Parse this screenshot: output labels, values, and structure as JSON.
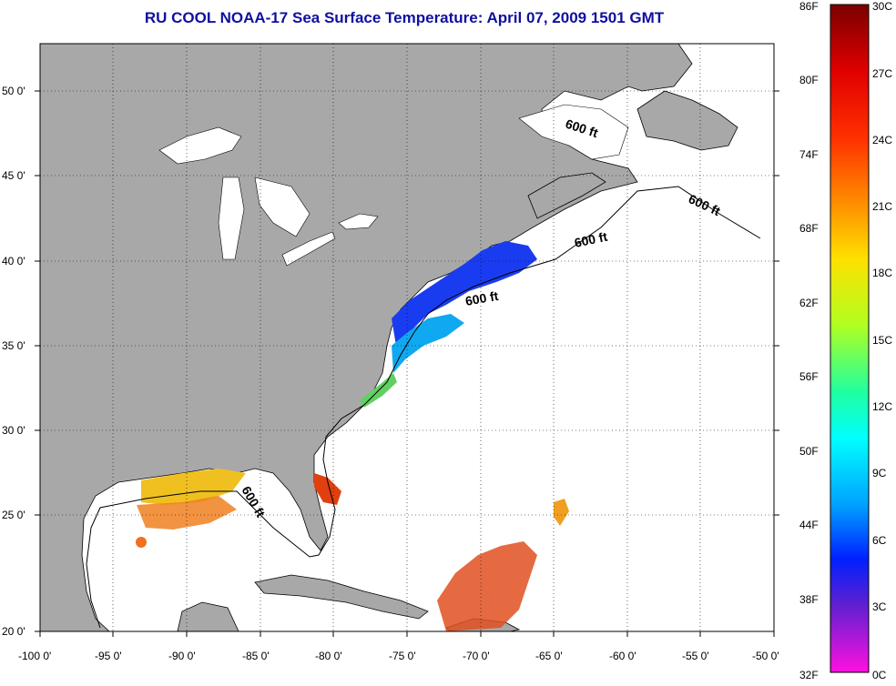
{
  "title": "RU COOL  NOAA-17  Sea Surface Temperature:  April 07, 2009 1501 GMT",
  "x_axis_labels": [
    "-100 0'",
    "-95 0'",
    "-90 0'",
    "-85 0'",
    "-80 0'",
    "-75 0'",
    "-70 0'",
    "-65 0'",
    "-60 0'",
    "-55 0'",
    "-50 0'"
  ],
  "y_axis_labels": [
    "50 0'",
    "45 0'",
    "40 0'",
    "35 0'",
    "30 0'",
    "25 0'",
    "20 0'"
  ],
  "isobath_labels": [
    "600 ft",
    "600 ft",
    "600 ft",
    "600 ft",
    "600 ft"
  ],
  "colorbar": {
    "fahrenheit": [
      "86F",
      "80F",
      "74F",
      "68F",
      "62F",
      "56F",
      "50F",
      "44F",
      "38F",
      "32F"
    ],
    "celsius": [
      "30C",
      "27C",
      "24C",
      "21C",
      "18C",
      "15C",
      "12C",
      "9C",
      "6C",
      "3C",
      "0C"
    ]
  },
  "colors": {
    "land": "#a8a8a8",
    "ocean": "#ffffff",
    "title": "#1010a0"
  }
}
